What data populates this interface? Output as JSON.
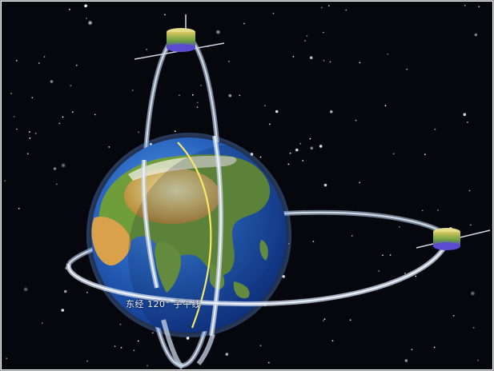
{
  "figure": {
    "meridian_label": "东经 120° 子午线",
    "colors": {
      "space": "#06060d",
      "ocean": "#2a67c2",
      "ocean_dark": "#0d2f80",
      "land_green": "#6f9d3a",
      "land_desert": "#d9a24a",
      "meridian": "#f5e86a",
      "orbit": "#d9e3f0",
      "satellite_gold": "#c8b04a",
      "satellite_blue": "#5a4bd1"
    },
    "elements": [
      "earth-globe",
      "polar-orbit-ring",
      "equatorial-orbit-ring",
      "satellite-top",
      "satellite-right",
      "meridian-120e-line",
      "star-field"
    ]
  }
}
